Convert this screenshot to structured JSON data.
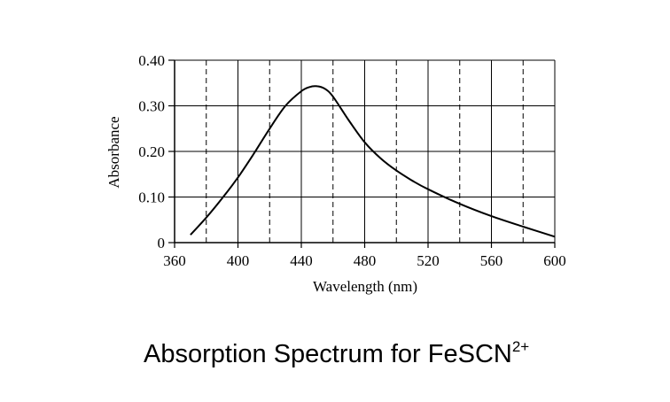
{
  "chart_data": {
    "type": "line",
    "title": "Absorption Spectrum for FeSCN",
    "title_superscript": "2+",
    "xlabel": "Wavelength (nm)",
    "ylabel": "Absorbance",
    "xlim": [
      360,
      600
    ],
    "ylim": [
      0,
      0.4
    ],
    "x_ticks": [
      360,
      400,
      440,
      480,
      520,
      560,
      600
    ],
    "x_tick_labels": [
      "360",
      "400",
      "440",
      "480",
      "520",
      "560",
      "600"
    ],
    "y_ticks": [
      0,
      0.1,
      0.2,
      0.3,
      0.4
    ],
    "y_tick_labels": [
      "0",
      "0.10",
      "0.20",
      "0.30",
      "0.40"
    ],
    "grid": true,
    "series": [
      {
        "x": [
          370,
          380,
          390,
          400,
          410,
          420,
          430,
          440,
          445,
          450,
          455,
          460,
          470,
          480,
          490,
          500,
          510,
          520,
          540,
          560,
          580,
          600
        ],
        "y": [
          0.017,
          0.055,
          0.097,
          0.143,
          0.195,
          0.25,
          0.3,
          0.332,
          0.341,
          0.343,
          0.337,
          0.32,
          0.268,
          0.22,
          0.185,
          0.158,
          0.136,
          0.117,
          0.085,
          0.058,
          0.035,
          0.013
        ]
      }
    ]
  }
}
